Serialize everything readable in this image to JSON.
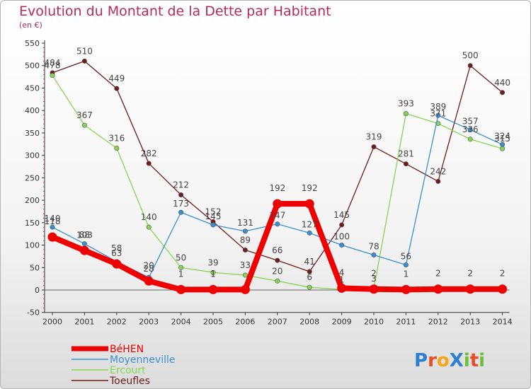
{
  "title": "Evolution du Montant de la Dette par Habitant",
  "subtitle": "(en €)",
  "logo": "ProXiti",
  "chart_data": {
    "type": "line",
    "title": "Evolution du Montant de la Dette par Habitant",
    "subtitle": "(en €)",
    "xlabel": "",
    "ylabel": "",
    "x": [
      "2000",
      "2001",
      "2002",
      "2003",
      "2004",
      "2005",
      "2006",
      "2007",
      "2008",
      "2009",
      "2010",
      "2011",
      "2012",
      "2013",
      "2014"
    ],
    "ylim": [
      -50,
      550
    ],
    "yticks": [
      -50,
      0,
      50,
      100,
      150,
      200,
      250,
      300,
      350,
      400,
      450,
      500,
      550
    ],
    "grid": false,
    "legend_position": "bottom-left",
    "series": [
      {
        "name": "BéHEN",
        "color": "#ee0000",
        "values": [
          118,
          88,
          58,
          20,
          1,
          1,
          1,
          192,
          192,
          4,
          2,
          1,
          2,
          2,
          2
        ],
        "labels": [
          "118",
          "88",
          "58",
          "20",
          "1",
          "1",
          "",
          "192",
          "192",
          "4",
          "2",
          "1",
          "2",
          "2",
          "2"
        ]
      },
      {
        "name": "Moyenneville",
        "color": "#3a8fd0",
        "values": [
          140,
          103,
          63,
          28,
          173,
          145,
          131,
          147,
          127,
          100,
          78,
          56,
          389,
          357,
          324
        ],
        "labels": [
          "140",
          "103",
          "63",
          "28",
          "173",
          "145",
          "131",
          "147",
          "127",
          "100",
          "78",
          "56",
          "389",
          "357",
          "324"
        ]
      },
      {
        "name": "Ercourt",
        "color": "#88d456",
        "values": [
          478,
          367,
          316,
          140,
          50,
          39,
          33,
          20,
          6,
          1,
          3,
          393,
          371,
          336,
          315
        ],
        "labels": [
          "478",
          "367",
          "316",
          "140",
          "50",
          "39",
          "33",
          "20",
          "6",
          "1",
          "3",
          "393",
          "371",
          "336",
          "315"
        ]
      },
      {
        "name": "Toeufles",
        "color": "#6e1c1c",
        "values": [
          484,
          510,
          449,
          282,
          212,
          152,
          89,
          66,
          41,
          145,
          319,
          281,
          242,
          500,
          440
        ],
        "labels": [
          "484",
          "510",
          "449",
          "282",
          "212",
          "152",
          "89",
          "66",
          "41",
          "145",
          "319",
          "281",
          "242",
          "500",
          "440"
        ]
      }
    ]
  }
}
